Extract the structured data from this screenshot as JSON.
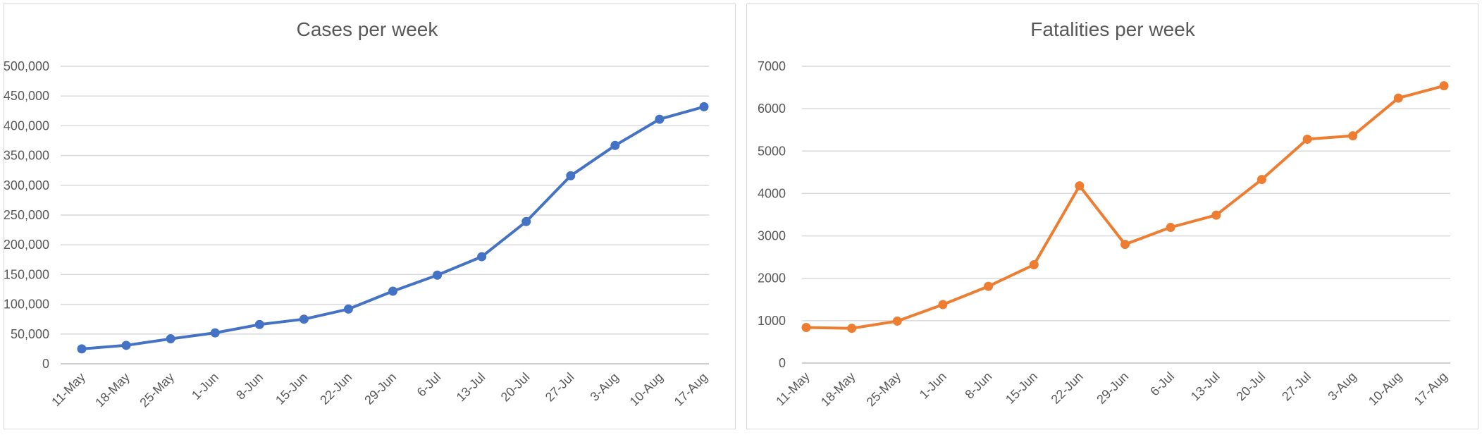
{
  "chart_data": [
    {
      "type": "line",
      "title": "Cases per week",
      "xlabel": "",
      "ylabel": "",
      "categories": [
        "11-May",
        "18-May",
        "25-May",
        "1-Jun",
        "8-Jun",
        "15-Jun",
        "22-Jun",
        "29-Jun",
        "6-Jul",
        "13-Jul",
        "20-Jul",
        "27-Jul",
        "3-Aug",
        "10-Aug",
        "17-Aug"
      ],
      "series": [
        {
          "color": "#4472c4",
          "values": [
            25000,
            31000,
            42000,
            52000,
            66000,
            75000,
            92000,
            122000,
            149000,
            180000,
            239000,
            316000,
            367000,
            411000,
            432000
          ]
        }
      ],
      "ylim": [
        0,
        500000
      ],
      "yticks": [
        "0",
        "50,000",
        "100,000",
        "150,000",
        "200,000",
        "250,000",
        "300,000",
        "350,000",
        "400,000",
        "450,000",
        "500,000"
      ],
      "grid": true,
      "legend": "none",
      "markers": true
    },
    {
      "type": "line",
      "title": "Fatalities per week",
      "xlabel": "",
      "ylabel": "",
      "categories": [
        "11-May",
        "18-May",
        "25-May",
        "1-Jun",
        "8-Jun",
        "15-Jun",
        "22-Jun",
        "29-Jun",
        "6-Jul",
        "13-Jul",
        "20-Jul",
        "27-Jul",
        "3-Aug",
        "10-Aug",
        "17-Aug"
      ],
      "series": [
        {
          "color": "#ed7d31",
          "values": [
            840,
            820,
            990,
            1380,
            1810,
            2320,
            4180,
            2800,
            3200,
            3490,
            4330,
            5280,
            5360,
            6250,
            6540
          ]
        }
      ],
      "ylim": [
        0,
        7000
      ],
      "yticks": [
        "0",
        "1000",
        "2000",
        "3000",
        "4000",
        "5000",
        "6000",
        "7000"
      ],
      "grid": true,
      "legend": "none",
      "markers": true
    }
  ]
}
